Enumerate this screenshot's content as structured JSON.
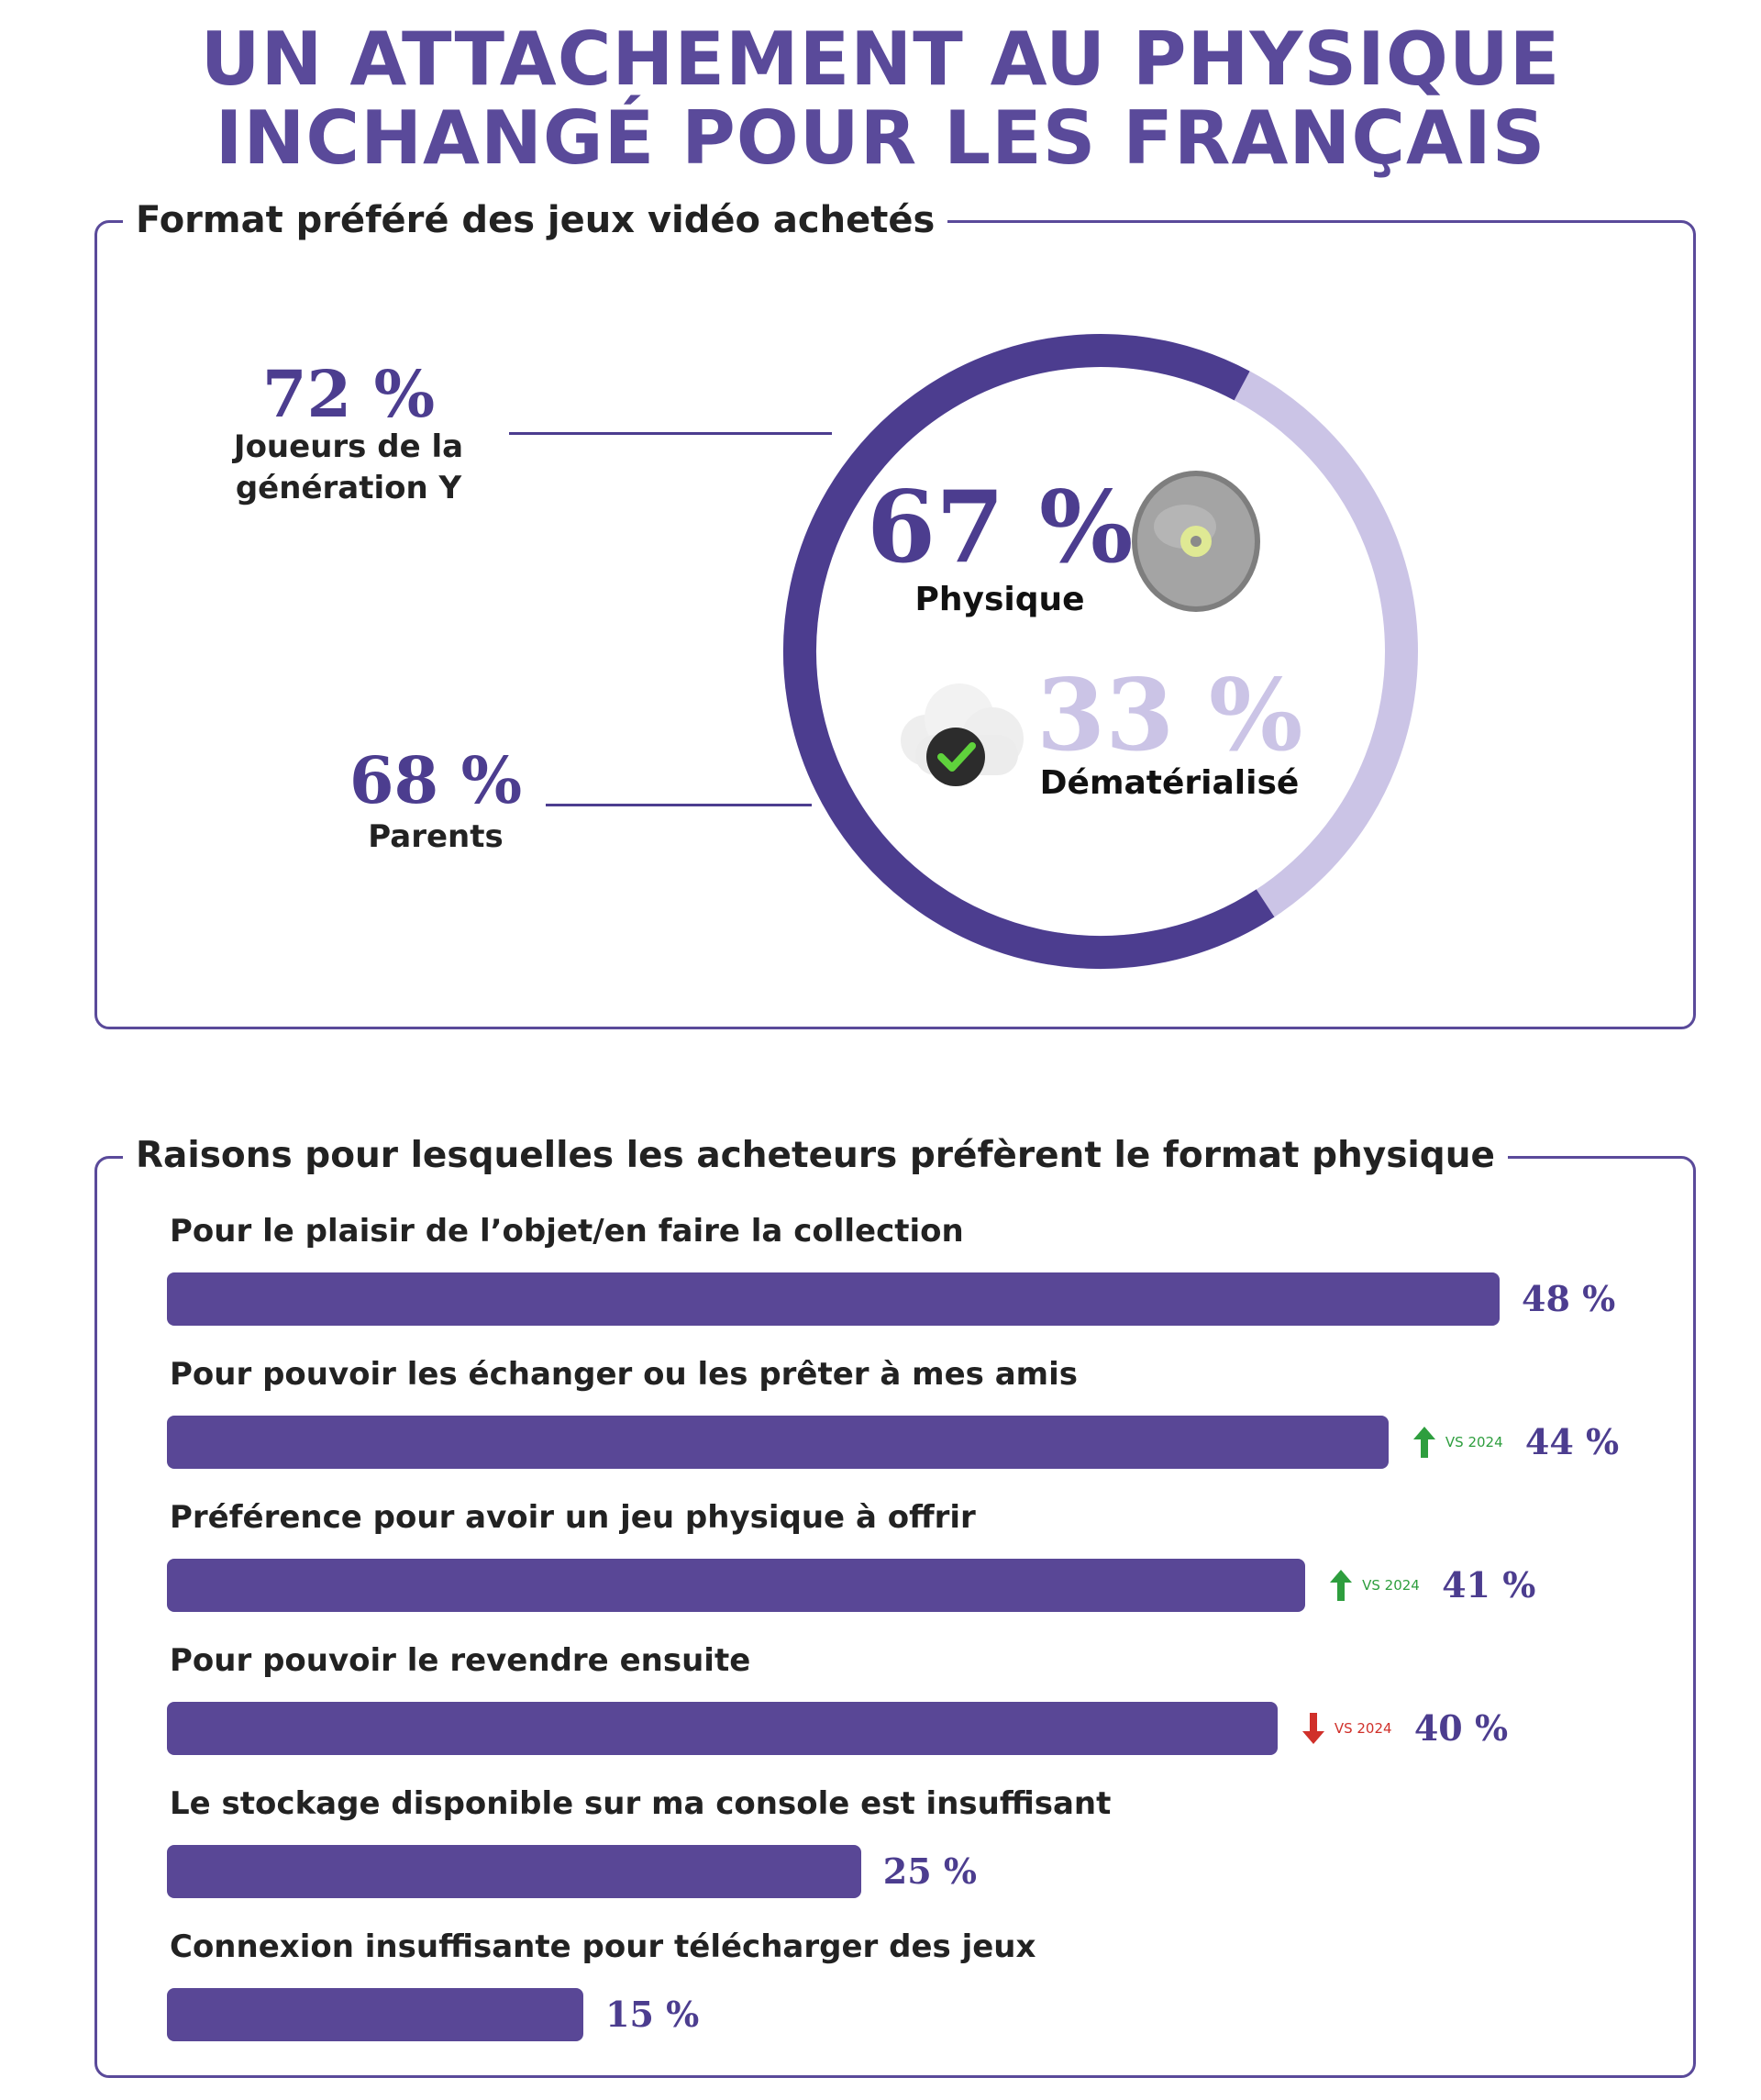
{
  "title": {
    "line1": "UN ATTACHEMENT AU PHYSIQUE",
    "line2": "INCHANGÉ POUR LES FRANÇAIS"
  },
  "chart_data": [
    {
      "type": "pie",
      "title": "Format préféré des jeux vidéo achetés",
      "slices": [
        {
          "label": "Physique",
          "value": 67,
          "display": "67 %",
          "color": "#4c3d8f",
          "icon": "disc-icon"
        },
        {
          "label": "Dématérialisé",
          "value": 33,
          "display": "33 %",
          "color": "#cbc4e6",
          "icon": "cloud-check-icon"
        }
      ],
      "annotations": [
        {
          "value": "72 %",
          "label_line1": "Joueurs de la",
          "label_line2": "génération Y"
        },
        {
          "value": "68 %",
          "label_line1": "Parents"
        }
      ]
    },
    {
      "type": "bar",
      "orientation": "horizontal",
      "title": "Raisons pour lesquelles les acheteurs préfèrent le format physique",
      "categories": [
        "Pour le plaisir de l’objet/en faire la collection",
        "Pour pouvoir les échanger ou les prêter à mes amis",
        "Préférence pour avoir un jeu physique à offrir",
        "Pour pouvoir le revendre ensuite",
        "Le stockage disponible sur ma console est insuffisant",
        "Connexion insuffisante pour télécharger des jeux"
      ],
      "values": [
        48,
        44,
        41,
        40,
        25,
        15
      ],
      "labels": [
        "48 %",
        "44 %",
        "41 %",
        "40 %",
        "25 %",
        "15 %"
      ],
      "trend": [
        null,
        {
          "direction": "up",
          "text": "VS 2024",
          "color": "#2e9e3e"
        },
        {
          "direction": "up",
          "text": "VS 2024",
          "color": "#2e9e3e"
        },
        {
          "direction": "down",
          "text": "VS 2024",
          "color": "#d0302a"
        },
        null,
        null
      ],
      "bar_color": "#594796",
      "xlim": [
        0,
        48
      ]
    }
  ]
}
